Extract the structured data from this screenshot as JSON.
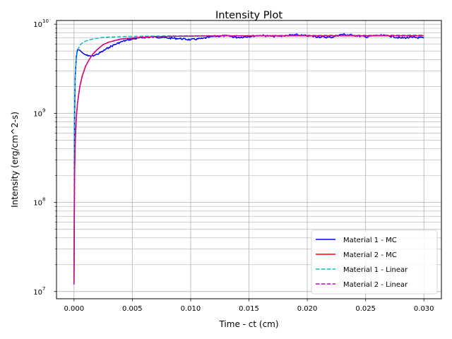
{
  "chart_data": {
    "type": "line",
    "title": "Intensity Plot",
    "xlabel": "Time - ct (cm)",
    "ylabel": "Intensity (erg/cm^2-s)",
    "xlim": [
      -0.0015,
      0.0315
    ],
    "ylim": [
      8300000.0,
      11000000000.0
    ],
    "yscale": "log",
    "grid": true,
    "legend_position": "lower-right",
    "x_ticks": [
      {
        "value": 0.0,
        "label": "0.000"
      },
      {
        "value": 0.005,
        "label": "0.005"
      },
      {
        "value": 0.01,
        "label": "0.010"
      },
      {
        "value": 0.015,
        "label": "0.015"
      },
      {
        "value": 0.02,
        "label": "0.020"
      },
      {
        "value": 0.025,
        "label": "0.025"
      },
      {
        "value": 0.03,
        "label": "0.030"
      }
    ],
    "y_ticks": [
      {
        "value": 10000000.0,
        "base": "10",
        "exp": "7"
      },
      {
        "value": 100000000.0,
        "base": "10",
        "exp": "8"
      },
      {
        "value": 1000000000.0,
        "base": "10",
        "exp": "9"
      },
      {
        "value": 10000000000.0,
        "base": "10",
        "exp": "10"
      }
    ],
    "series": [
      {
        "name": "Material 1 - MC",
        "color": "#0000ff",
        "style": "solid",
        "x": [
          0.0,
          5e-05,
          0.0001,
          0.0002,
          0.0003,
          0.0005,
          0.0007,
          0.0009,
          0.0012,
          0.0015,
          0.0018,
          0.002,
          0.0025,
          0.003,
          0.0035,
          0.004,
          0.0045,
          0.005,
          0.006,
          0.007,
          0.008,
          0.009,
          0.01,
          0.011,
          0.012,
          0.013,
          0.014,
          0.015,
          0.016,
          0.017,
          0.018,
          0.019,
          0.02,
          0.021,
          0.022,
          0.023,
          0.024,
          0.025,
          0.026,
          0.027,
          0.028,
          0.029,
          0.03
        ],
        "y": [
          12000000.0,
          800000000.0,
          2500000000.0,
          4300000000.0,
          5200000000.0,
          5100000000.0,
          4800000000.0,
          4600000000.0,
          4400000000.0,
          4400000000.0,
          4500000000.0,
          4600000000.0,
          5000000000.0,
          5500000000.0,
          5900000000.0,
          6300000000.0,
          6600000000.0,
          6800000000.0,
          7100000000.0,
          7200000000.0,
          7000000000.0,
          6900000000.0,
          6700000000.0,
          6900000000.0,
          7300000000.0,
          7400000000.0,
          7100000000.0,
          7300000000.0,
          7500000000.0,
          7300000000.0,
          7400000000.0,
          7600000000.0,
          7400000000.0,
          7200000000.0,
          7100000000.0,
          7700000000.0,
          7500000000.0,
          7200000000.0,
          7500000000.0,
          7400000000.0,
          7000000000.0,
          7100000000.0,
          7000000000.0
        ]
      },
      {
        "name": "Material 2 - MC",
        "color": "#ff0000",
        "style": "solid",
        "x": [
          0.0,
          5e-05,
          0.0001,
          0.0002,
          0.0003,
          0.0005,
          0.0007,
          0.001,
          0.0013,
          0.0016,
          0.002,
          0.0025,
          0.003,
          0.004,
          0.005,
          0.006,
          0.007,
          0.008,
          0.01,
          0.012,
          0.015,
          0.02,
          0.025,
          0.03
        ],
        "y": [
          12000000.0,
          200000000.0,
          450000000.0,
          900000000.0,
          1300000000.0,
          2000000000.0,
          2600000000.0,
          3400000000.0,
          4000000000.0,
          4600000000.0,
          5200000000.0,
          5900000000.0,
          6300000000.0,
          6800000000.0,
          7000000000.0,
          7150000000.0,
          7250000000.0,
          7300000000.0,
          7350000000.0,
          7400000000.0,
          7400000000.0,
          7420000000.0,
          7420000000.0,
          7420000000.0
        ]
      },
      {
        "name": "Material 1 - Linear",
        "color": "#00bfbf",
        "style": "dashed",
        "x": [
          0.0,
          5e-05,
          0.0001,
          0.0002,
          0.0003,
          0.0005,
          0.0008,
          0.0012,
          0.0018,
          0.0025,
          0.0035,
          0.005,
          0.007,
          0.01,
          0.015,
          0.02,
          0.025,
          0.03
        ],
        "y": [
          12000000.0,
          900000000.0,
          2400000000.0,
          4000000000.0,
          5000000000.0,
          5800000000.0,
          6300000000.0,
          6600000000.0,
          6900000000.0,
          7100000000.0,
          7200000000.0,
          7300000000.0,
          7350000000.0,
          7400000000.0,
          7450000000.0,
          7500000000.0,
          7520000000.0,
          7550000000.0
        ]
      },
      {
        "name": "Material 2 - Linear",
        "color": "#bf00bf",
        "style": "dashed",
        "x": [
          0.0,
          5e-05,
          0.0001,
          0.0002,
          0.0003,
          0.0005,
          0.0007,
          0.001,
          0.0013,
          0.0016,
          0.002,
          0.0025,
          0.003,
          0.004,
          0.005,
          0.006,
          0.007,
          0.008,
          0.01,
          0.012,
          0.015,
          0.02,
          0.025,
          0.03
        ],
        "y": [
          12000000.0,
          200000000.0,
          450000000.0,
          900000000.0,
          1300000000.0,
          2000000000.0,
          2600000000.0,
          3400000000.0,
          4000000000.0,
          4600000000.0,
          5200000000.0,
          5900000000.0,
          6300000000.0,
          6800000000.0,
          7000000000.0,
          7150000000.0,
          7250000000.0,
          7300000000.0,
          7350000000.0,
          7400000000.0,
          7400000000.0,
          7420000000.0,
          7420000000.0,
          7420000000.0
        ]
      }
    ]
  }
}
